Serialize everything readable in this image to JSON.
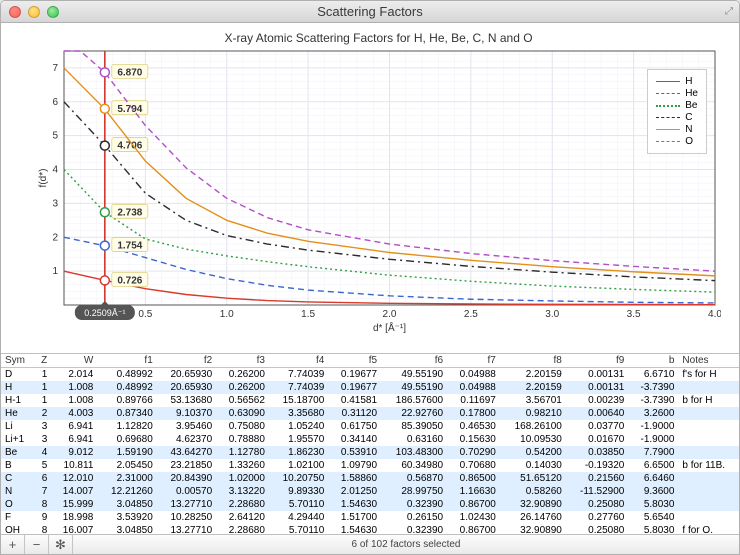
{
  "window": {
    "title": "Scattering Factors"
  },
  "chart": {
    "title": "X-ray Atomic Scattering Factors for H, He, Be, C, N and O",
    "xlabel": "d* [Å⁻¹]",
    "ylabel": "f(d*)",
    "xlim": [
      0,
      4.0
    ],
    "ylim": [
      0,
      7.5
    ],
    "xticks": [
      0.5,
      1.0,
      1.5,
      2.0,
      2.5,
      3.0,
      3.5,
      4.0
    ],
    "yticks": [
      1,
      2,
      3,
      4,
      5,
      6,
      7
    ],
    "minor_x_step": 0.1,
    "minor_y_step": 0.2,
    "grid_color": "#e3e3ef",
    "minor_grid_color": "#f2f2f8",
    "axis_color": "#555",
    "background": "#ffffff",
    "cursor_x": 0.2509,
    "cursor_label": "0.2509Å⁻¹",
    "cursor_color": "#cc2a1e",
    "series": [
      {
        "name": "H",
        "color": "#d8392b",
        "dash": "none",
        "y0": 1.0,
        "cursor_y": 0.726,
        "points": [
          [
            0,
            1.0
          ],
          [
            0.25,
            0.73
          ],
          [
            0.5,
            0.48
          ],
          [
            0.75,
            0.31
          ],
          [
            1.0,
            0.2
          ],
          [
            1.25,
            0.13
          ],
          [
            1.5,
            0.09
          ],
          [
            2.0,
            0.05
          ],
          [
            2.5,
            0.03
          ],
          [
            3.0,
            0.02
          ],
          [
            3.5,
            0.015
          ],
          [
            4.0,
            0.01
          ]
        ]
      },
      {
        "name": "He",
        "color": "#3a66d0",
        "dash": "6,4",
        "y0": 2.0,
        "cursor_y": 1.754,
        "points": [
          [
            0,
            2.0
          ],
          [
            0.25,
            1.75
          ],
          [
            0.5,
            1.4
          ],
          [
            0.75,
            1.05
          ],
          [
            1.0,
            0.78
          ],
          [
            1.25,
            0.58
          ],
          [
            1.5,
            0.44
          ],
          [
            2.0,
            0.27
          ],
          [
            2.5,
            0.17
          ],
          [
            3.0,
            0.12
          ],
          [
            3.5,
            0.08
          ],
          [
            4.0,
            0.06
          ]
        ]
      },
      {
        "name": "Be",
        "color": "#2f9e44",
        "dash": "2,3",
        "y0": 4.0,
        "cursor_y": 2.738,
        "points": [
          [
            0,
            4.0
          ],
          [
            0.25,
            2.74
          ],
          [
            0.5,
            1.95
          ],
          [
            0.75,
            1.65
          ],
          [
            1.0,
            1.45
          ],
          [
            1.25,
            1.28
          ],
          [
            1.5,
            1.13
          ],
          [
            2.0,
            0.88
          ],
          [
            2.5,
            0.7
          ],
          [
            3.0,
            0.56
          ],
          [
            3.5,
            0.46
          ],
          [
            4.0,
            0.38
          ]
        ]
      },
      {
        "name": "C",
        "color": "#2b2b2b",
        "dash": "8,4,2,4",
        "y0": 6.0,
        "cursor_y": 4.706,
        "points": [
          [
            0,
            6.0
          ],
          [
            0.25,
            4.71
          ],
          [
            0.5,
            3.3
          ],
          [
            0.75,
            2.5
          ],
          [
            1.0,
            2.05
          ],
          [
            1.25,
            1.8
          ],
          [
            1.5,
            1.62
          ],
          [
            2.0,
            1.35
          ],
          [
            2.5,
            1.14
          ],
          [
            3.0,
            0.97
          ],
          [
            3.5,
            0.83
          ],
          [
            4.0,
            0.72
          ]
        ]
      },
      {
        "name": "N",
        "color": "#e38f1a",
        "dash": "none",
        "y0": 7.0,
        "cursor_y": 5.794,
        "points": [
          [
            0,
            7.0
          ],
          [
            0.25,
            5.79
          ],
          [
            0.5,
            4.25
          ],
          [
            0.75,
            3.15
          ],
          [
            1.0,
            2.5
          ],
          [
            1.25,
            2.12
          ],
          [
            1.5,
            1.88
          ],
          [
            2.0,
            1.55
          ],
          [
            2.5,
            1.32
          ],
          [
            3.0,
            1.13
          ],
          [
            3.5,
            0.98
          ],
          [
            4.0,
            0.86
          ]
        ]
      },
      {
        "name": "O",
        "color": "#b04fc7",
        "dash": "6,4",
        "y0": 8.0,
        "cursor_y": 6.87,
        "points": [
          [
            0,
            8.0
          ],
          [
            0.1,
            7.5
          ],
          [
            0.25,
            6.87
          ],
          [
            0.5,
            5.3
          ],
          [
            0.75,
            4.05
          ],
          [
            1.0,
            3.15
          ],
          [
            1.25,
            2.58
          ],
          [
            1.5,
            2.22
          ],
          [
            2.0,
            1.8
          ],
          [
            2.5,
            1.52
          ],
          [
            3.0,
            1.31
          ],
          [
            3.5,
            1.14
          ],
          [
            4.0,
            1.0
          ]
        ]
      }
    ]
  },
  "table": {
    "columns": [
      "Sym",
      "Z",
      "W",
      "f1",
      "f2",
      "f3",
      "f4",
      "f5",
      "f6",
      "f7",
      "f8",
      "f9",
      "b",
      "Notes"
    ],
    "rows": [
      [
        "D",
        "1",
        "2.014",
        "0.48992",
        "20.65930",
        "0.26200",
        "7.74039",
        "0.19677",
        "49.55190",
        "0.04988",
        "2.20159",
        "0.00131",
        "6.6710",
        "f's for H"
      ],
      [
        "H",
        "1",
        "1.008",
        "0.48992",
        "20.65930",
        "0.26200",
        "7.74039",
        "0.19677",
        "49.55190",
        "0.04988",
        "2.20159",
        "0.00131",
        "-3.7390",
        ""
      ],
      [
        "H-1",
        "1",
        "1.008",
        "0.89766",
        "53.13680",
        "0.56562",
        "15.18700",
        "0.41581",
        "186.57600",
        "0.11697",
        "3.56701",
        "0.00239",
        "-3.7390",
        "b for H"
      ],
      [
        "He",
        "2",
        "4.003",
        "0.87340",
        "9.10370",
        "0.63090",
        "3.35680",
        "0.31120",
        "22.92760",
        "0.17800",
        "0.98210",
        "0.00640",
        "3.2600",
        ""
      ],
      [
        "Li",
        "3",
        "6.941",
        "1.12820",
        "3.95460",
        "0.75080",
        "1.05240",
        "0.61750",
        "85.39050",
        "0.46530",
        "168.26100",
        "0.03770",
        "-1.9000",
        ""
      ],
      [
        "Li+1",
        "3",
        "6.941",
        "0.69680",
        "4.62370",
        "0.78880",
        "1.95570",
        "0.34140",
        "0.63160",
        "0.15630",
        "10.09530",
        "0.01670",
        "-1.9000",
        ""
      ],
      [
        "Be",
        "4",
        "9.012",
        "1.59190",
        "43.64270",
        "1.12780",
        "1.86230",
        "0.53910",
        "103.48300",
        "0.70290",
        "0.54200",
        "0.03850",
        "7.7900",
        ""
      ],
      [
        "B",
        "5",
        "10.811",
        "2.05450",
        "23.21850",
        "1.33260",
        "1.02100",
        "1.09790",
        "60.34980",
        "0.70680",
        "0.14030",
        "-0.19320",
        "6.6500",
        "b for 11B."
      ],
      [
        "C",
        "6",
        "12.010",
        "2.31000",
        "20.84390",
        "1.02000",
        "10.20750",
        "1.58860",
        "0.56870",
        "0.86500",
        "51.65120",
        "0.21560",
        "6.6460",
        ""
      ],
      [
        "N",
        "7",
        "14.007",
        "12.21260",
        "0.00570",
        "3.13220",
        "9.89330",
        "2.01250",
        "28.99750",
        "1.16630",
        "0.58260",
        "-11.52900",
        "9.3600",
        ""
      ],
      [
        "O",
        "8",
        "15.999",
        "3.04850",
        "13.27710",
        "2.28680",
        "5.70110",
        "1.54630",
        "0.32390",
        "0.86700",
        "32.90890",
        "0.25080",
        "5.8030",
        ""
      ],
      [
        "F",
        "9",
        "18.998",
        "3.53920",
        "10.28250",
        "2.64120",
        "4.29440",
        "1.51700",
        "0.26150",
        "1.02430",
        "26.14760",
        "0.27760",
        "5.6540",
        ""
      ],
      [
        "OH",
        "8",
        "16.007",
        "3.04850",
        "13.27710",
        "2.28680",
        "5.70110",
        "1.54630",
        "0.32390",
        "0.86700",
        "32.90890",
        "0.25080",
        "5.8030",
        "f for O."
      ]
    ],
    "selected": [
      "H",
      "He",
      "Be",
      "C",
      "N",
      "O"
    ]
  },
  "footer": {
    "plus": "+",
    "minus": "−",
    "gear": "✻",
    "status": "6 of 102 factors selected"
  }
}
